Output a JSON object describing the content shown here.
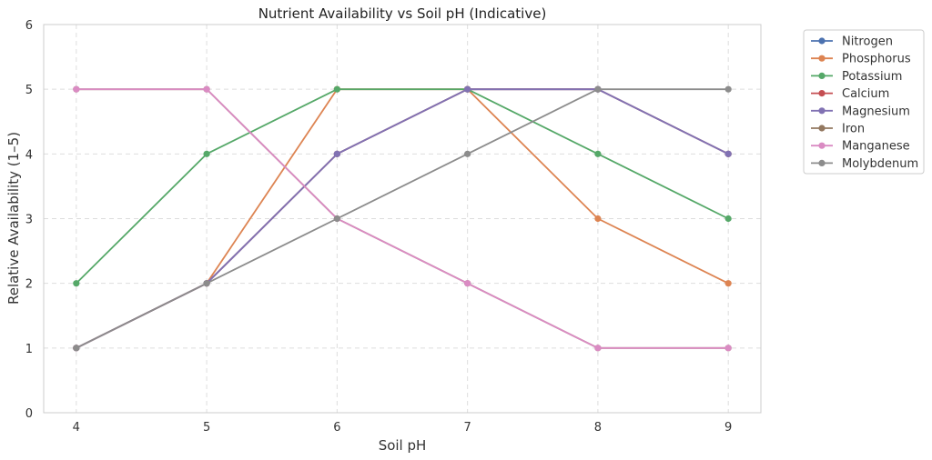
{
  "chart_data": {
    "type": "line",
    "title": "Nutrient Availability vs Soil pH (Indicative)",
    "xlabel": "Soil pH",
    "ylabel": "Relative Availability (1–5)",
    "x": [
      4,
      5,
      6,
      7,
      8,
      9
    ],
    "xlim": [
      3.75,
      9.25
    ],
    "ylim": [
      0,
      6
    ],
    "yticks": [
      0,
      1,
      2,
      3,
      4,
      5,
      6
    ],
    "grid": true,
    "legend_position": "outside-top-right",
    "series": [
      {
        "name": "Nitrogen",
        "color": "#4c72b0",
        "values": [
          1,
          2,
          4,
          5,
          5,
          4
        ]
      },
      {
        "name": "Phosphorus",
        "color": "#dd8452",
        "values": [
          1,
          2,
          5,
          5,
          3,
          2
        ]
      },
      {
        "name": "Potassium",
        "color": "#55a868",
        "values": [
          2,
          4,
          5,
          5,
          4,
          3
        ]
      },
      {
        "name": "Calcium",
        "color": "#c44e52",
        "values": [
          1,
          2,
          4,
          5,
          5,
          4
        ]
      },
      {
        "name": "Magnesium",
        "color": "#8172b3",
        "values": [
          1,
          2,
          4,
          5,
          5,
          4
        ]
      },
      {
        "name": "Iron",
        "color": "#937860",
        "values": [
          5,
          5,
          3,
          2,
          1,
          1
        ]
      },
      {
        "name": "Manganese",
        "color": "#da8bc3",
        "values": [
          5,
          5,
          3,
          2,
          1,
          1
        ]
      },
      {
        "name": "Molybdenum",
        "color": "#8c8c8c",
        "values": [
          1,
          2,
          3,
          4,
          5,
          5
        ]
      }
    ]
  }
}
